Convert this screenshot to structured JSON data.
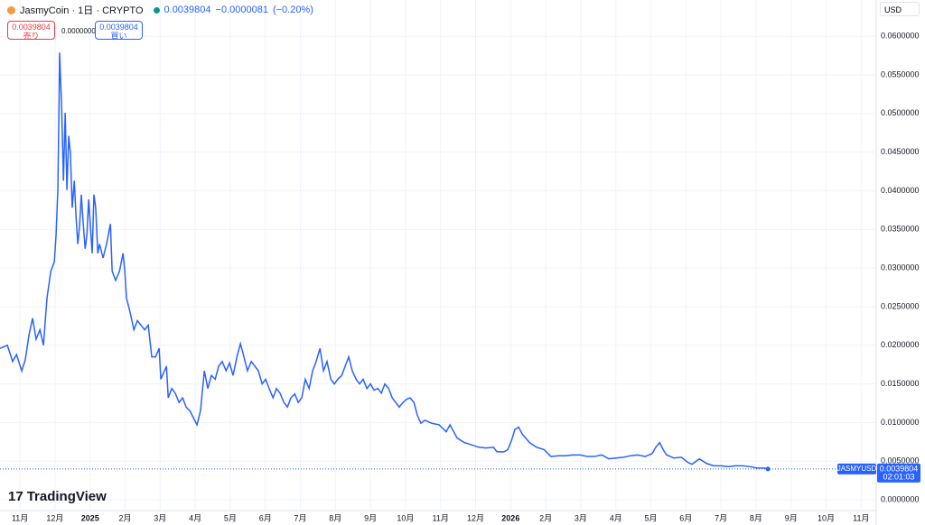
{
  "header": {
    "symbol": "JasmyCoin · 1日 · CRYPTO",
    "price": "0.0039804",
    "change": "−0.0000081",
    "change_pct": "(−0.20%)",
    "sell_price": "0.0039804",
    "sell_label": "売り",
    "spread": "0.0000000",
    "buy_price": "0.0039804",
    "buy_label": "買い",
    "currency": "USD",
    "logo": "TradingView"
  },
  "chart_data": {
    "type": "line",
    "series": [
      {
        "name": "JASMYUSD",
        "color": "#2962ff",
        "x": [
          -0.57,
          -0.36,
          -0.21,
          -0.1,
          0.05,
          0.15,
          0.26,
          0.36,
          0.46,
          0.57,
          0.67,
          0.77,
          0.88,
          0.98,
          1.03,
          1.08,
          1.11,
          1.13,
          1.19,
          1.24,
          1.29,
          1.34,
          1.39,
          1.44,
          1.49,
          1.55,
          1.6,
          1.65,
          1.7,
          1.75,
          1.8,
          1.86,
          1.91,
          1.96,
          2.01,
          2.06,
          2.11,
          2.16,
          2.22,
          2.27,
          2.37,
          2.47,
          2.58,
          2.63,
          2.73,
          2.84,
          2.94,
          2.99,
          3.04,
          3.14,
          3.25,
          3.35,
          3.45,
          3.56,
          3.66,
          3.76,
          3.87,
          3.97,
          4.02,
          4.18,
          4.23,
          4.33,
          4.43,
          4.54,
          4.64,
          4.74,
          4.85,
          4.95,
          5.05,
          5.15,
          5.26,
          5.36,
          5.46,
          5.57,
          5.67,
          5.77,
          5.88,
          5.98,
          6.08,
          6.19,
          6.29,
          6.39,
          6.49,
          6.6,
          6.7,
          6.8,
          6.91,
          7.01,
          7.11,
          7.22,
          7.32,
          7.42,
          7.53,
          7.63,
          7.73,
          7.84,
          7.94,
          8.04,
          8.14,
          8.25,
          8.35,
          8.45,
          8.56,
          8.66,
          8.76,
          8.87,
          8.97,
          9.07,
          9.18,
          9.28,
          9.38,
          9.48,
          9.59,
          9.69,
          9.79,
          9.9,
          10.0,
          10.1,
          10.21,
          10.31,
          10.41,
          10.52,
          10.62,
          10.72,
          10.82,
          10.93,
          11.03,
          11.13,
          11.24,
          11.34,
          11.44,
          11.55,
          11.75,
          11.96,
          12.16,
          12.27,
          12.47,
          12.68,
          12.89,
          13.09,
          13.3,
          13.51,
          13.61,
          13.81,
          13.92,
          14.02,
          14.12,
          14.23,
          14.33,
          14.54,
          14.74,
          14.95,
          15.15,
          15.36,
          15.57,
          15.77,
          15.98,
          16.19,
          16.39,
          16.6,
          16.8,
          17.01,
          17.22,
          17.42,
          17.63,
          17.84,
          18.04,
          18.14,
          18.25,
          18.35,
          18.45,
          18.66,
          18.87,
          19.07,
          19.18,
          19.38,
          19.59,
          19.79,
          20.0,
          20.21,
          20.41,
          20.62,
          20.82,
          21.03,
          21.24,
          21.34
        ],
        "values": [
          0.0196,
          0.02,
          0.0179,
          0.0188,
          0.0167,
          0.0181,
          0.0214,
          0.0235,
          0.0208,
          0.022,
          0.02,
          0.0261,
          0.0296,
          0.0308,
          0.0343,
          0.0401,
          0.0495,
          0.0579,
          0.0506,
          0.0413,
          0.0501,
          0.0401,
          0.0471,
          0.0448,
          0.0378,
          0.0413,
          0.0366,
          0.0331,
          0.0354,
          0.0395,
          0.036,
          0.0325,
          0.0343,
          0.0389,
          0.0354,
          0.0319,
          0.0395,
          0.0378,
          0.0319,
          0.0331,
          0.0313,
          0.0331,
          0.0357,
          0.0296,
          0.0284,
          0.0296,
          0.0319,
          0.0296,
          0.0261,
          0.0243,
          0.022,
          0.0232,
          0.0226,
          0.022,
          0.0226,
          0.0185,
          0.0185,
          0.0196,
          0.0156,
          0.0173,
          0.0132,
          0.0144,
          0.0138,
          0.0126,
          0.0132,
          0.012,
          0.0115,
          0.0106,
          0.0097,
          0.0115,
          0.0167,
          0.0144,
          0.0161,
          0.0156,
          0.0173,
          0.0179,
          0.0167,
          0.0177,
          0.0161,
          0.0185,
          0.0202,
          0.0185,
          0.0167,
          0.0179,
          0.0173,
          0.0167,
          0.015,
          0.0156,
          0.0144,
          0.0132,
          0.0144,
          0.0138,
          0.0126,
          0.012,
          0.0132,
          0.0137,
          0.0126,
          0.0132,
          0.0156,
          0.0144,
          0.0167,
          0.0179,
          0.0196,
          0.0167,
          0.0179,
          0.0156,
          0.015,
          0.0156,
          0.0161,
          0.0173,
          0.0185,
          0.0167,
          0.0156,
          0.015,
          0.0156,
          0.0144,
          0.015,
          0.0142,
          0.0144,
          0.0138,
          0.015,
          0.0144,
          0.0132,
          0.0126,
          0.012,
          0.0126,
          0.013,
          0.0132,
          0.0126,
          0.0109,
          0.0099,
          0.0103,
          0.0099,
          0.0097,
          0.0088,
          0.0097,
          0.008,
          0.0074,
          0.0071,
          0.0068,
          0.0067,
          0.0068,
          0.0062,
          0.0062,
          0.0065,
          0.0076,
          0.0091,
          0.0094,
          0.0085,
          0.0074,
          0.0068,
          0.0065,
          0.0056,
          0.0057,
          0.0057,
          0.0058,
          0.0058,
          0.0056,
          0.0056,
          0.0058,
          0.0053,
          0.0054,
          0.0055,
          0.0057,
          0.0058,
          0.0056,
          0.006,
          0.0068,
          0.0074,
          0.0065,
          0.0058,
          0.0054,
          0.0055,
          0.0048,
          0.0046,
          0.0053,
          0.0047,
          0.0044,
          0.0044,
          0.0043,
          0.0044,
          0.0044,
          0.0043,
          0.0041,
          0.0041,
          0.0039804
        ]
      }
    ],
    "last_price": 0.0039804,
    "countdown": "02:01:03",
    "xlim": [
      -0.57,
      24.43
    ],
    "xticks": [
      {
        "value": 0,
        "label": "11月"
      },
      {
        "value": 1,
        "label": "12月"
      },
      {
        "value": 2,
        "label": "2025"
      },
      {
        "value": 3,
        "label": "2月"
      },
      {
        "value": 4,
        "label": "3月"
      },
      {
        "value": 5,
        "label": "4月"
      },
      {
        "value": 6,
        "label": "5月"
      },
      {
        "value": 7,
        "label": "6月"
      },
      {
        "value": 8,
        "label": "7月"
      },
      {
        "value": 9,
        "label": "8月"
      },
      {
        "value": 10,
        "label": "9月"
      },
      {
        "value": 11,
        "label": "10月"
      },
      {
        "value": 12,
        "label": "11月"
      },
      {
        "value": 13,
        "label": "12月"
      },
      {
        "value": 14,
        "label": "2026"
      },
      {
        "value": 15,
        "label": "2月"
      },
      {
        "value": 16,
        "label": "3月"
      },
      {
        "value": 17,
        "label": "4月"
      },
      {
        "value": 18,
        "label": "5月"
      },
      {
        "value": 19,
        "label": "6月"
      },
      {
        "value": 20,
        "label": "7月"
      },
      {
        "value": 21,
        "label": "8月"
      },
      {
        "value": 22,
        "label": "9月"
      },
      {
        "value": 23,
        "label": "10月"
      },
      {
        "value": 24,
        "label": "11月"
      }
    ],
    "ylim": [
      -0.0014,
      0.0647
    ],
    "yticks": [
      {
        "value": 0,
        "label": "0.0000000"
      },
      {
        "value": 0.005,
        "label": "0.0050000"
      },
      {
        "value": 0.01,
        "label": "0.0100000"
      },
      {
        "value": 0.015,
        "label": "0.0150000"
      },
      {
        "value": 0.02,
        "label": "0.0200000"
      },
      {
        "value": 0.025,
        "label": "0.0250000"
      },
      {
        "value": 0.03,
        "label": "0.0300000"
      },
      {
        "value": 0.035,
        "label": "0.0350000"
      },
      {
        "value": 0.04,
        "label": "0.0400000"
      },
      {
        "value": 0.045,
        "label": "0.0450000"
      },
      {
        "value": 0.05,
        "label": "0.0500000"
      },
      {
        "value": 0.055,
        "label": "0.0550000"
      },
      {
        "value": 0.06,
        "label": "0.0600000"
      }
    ],
    "grid": true
  }
}
